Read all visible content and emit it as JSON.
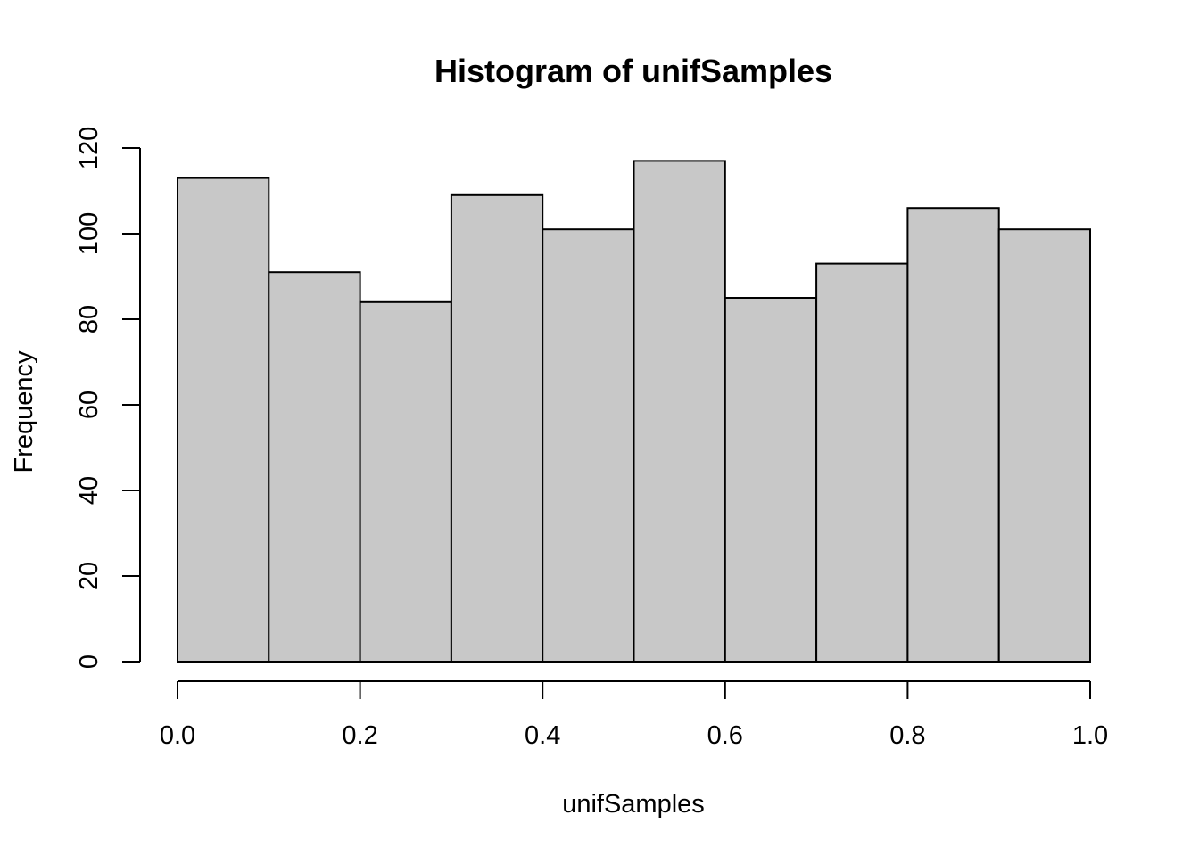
{
  "chart_data": {
    "type": "bar",
    "title": "Histogram of unifSamples",
    "xlabel": "unifSamples",
    "ylabel": "Frequency",
    "bins": [
      {
        "x0": 0.0,
        "x1": 0.1,
        "count": 113
      },
      {
        "x0": 0.1,
        "x1": 0.2,
        "count": 91
      },
      {
        "x0": 0.2,
        "x1": 0.3,
        "count": 84
      },
      {
        "x0": 0.3,
        "x1": 0.4,
        "count": 109
      },
      {
        "x0": 0.4,
        "x1": 0.5,
        "count": 101
      },
      {
        "x0": 0.5,
        "x1": 0.6,
        "count": 117
      },
      {
        "x0": 0.6,
        "x1": 0.7,
        "count": 85
      },
      {
        "x0": 0.7,
        "x1": 0.8,
        "count": 93
      },
      {
        "x0": 0.8,
        "x1": 0.9,
        "count": 106
      },
      {
        "x0": 0.9,
        "x1": 1.0,
        "count": 101
      }
    ],
    "xlim": [
      0.0,
      1.0
    ],
    "ylim": [
      0,
      120
    ],
    "xticks": [
      "0.0",
      "0.2",
      "0.4",
      "0.6",
      "0.8",
      "1.0"
    ],
    "yticks": [
      "0",
      "20",
      "40",
      "60",
      "80",
      "100",
      "120"
    ],
    "bar_fill": "#c8c8c8",
    "grid": false
  }
}
